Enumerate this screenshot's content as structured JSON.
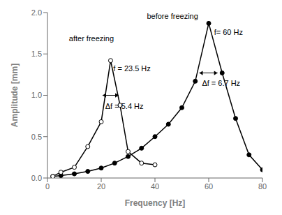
{
  "chart_data": {
    "type": "line",
    "xlabel": "Frequency [Hz]",
    "ylabel": "Amplitude [mm]",
    "xlim": [
      0,
      80
    ],
    "ylim": [
      0.0,
      2.0
    ],
    "xticks": [
      0,
      20,
      40,
      60,
      80
    ],
    "yticks": [
      {
        "value": 0.0,
        "label": "0.0"
      },
      0.5,
      {
        "value": 1.0,
        "label": "1.0"
      },
      1.5,
      {
        "value": 2.0,
        "label": "2.0"
      }
    ],
    "grid": false,
    "series": [
      {
        "color": "#000000",
        "marker": "filled_circle",
        "x": [
          2,
          5,
          10,
          15,
          20,
          25,
          30,
          35,
          40,
          45,
          50,
          55,
          60,
          65,
          70,
          75,
          80
        ],
        "values": [
          0.02,
          0.03,
          0.05,
          0.08,
          0.12,
          0.18,
          0.26,
          0.36,
          0.5,
          0.65,
          0.85,
          1.17,
          1.87,
          1.27,
          0.72,
          0.28,
          0.1
        ]
      },
      {
        "color": "#000000",
        "marker": "open_circle",
        "x": [
          2,
          5,
          10,
          15,
          20,
          23.5,
          27,
          30,
          35,
          40
        ],
        "values": [
          0.02,
          0.07,
          0.13,
          0.38,
          0.68,
          1.42,
          0.88,
          0.32,
          0.18,
          0.16
        ]
      }
    ],
    "annotations": [
      {
        "text": "before freezing",
        "x": 37,
        "y": 1.99
      },
      {
        "text": "f= 60 Hz",
        "x": 62,
        "y": 1.8
      },
      {
        "text": "after freezing",
        "x": 8,
        "y": 1.72
      },
      {
        "text": "f = 23.5 Hz",
        "x": 24.5,
        "y": 1.36
      },
      {
        "text": "Δf = 5.4 Hz",
        "x": 21.5,
        "y": 0.9
      },
      {
        "text": "Δf = 6.7 Hz",
        "x": 57.5,
        "y": 1.18
      }
    ],
    "arrows": [
      {
        "x1": 20.5,
        "x2": 26.5,
        "y": 1.0
      },
      {
        "x1": 56.5,
        "x2": 63.3,
        "y": 1.27
      }
    ]
  }
}
